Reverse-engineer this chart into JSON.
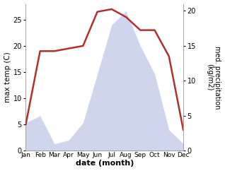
{
  "months": [
    "Jan",
    "Feb",
    "Mar",
    "Apr",
    "May",
    "Jun",
    "Jul",
    "Aug",
    "Sep",
    "Oct",
    "Nov",
    "Dec"
  ],
  "temperature": [
    5,
    19,
    19,
    19.5,
    20,
    26.5,
    27,
    25.5,
    23,
    23,
    18,
    4
  ],
  "precipitation": [
    4,
    5,
    1,
    1.5,
    4,
    11,
    18,
    20,
    15,
    11,
    3,
    1
  ],
  "temp_color": "#b03030",
  "precip_color": "#aab4e0",
  "precip_alpha": 0.55,
  "temp_linewidth": 1.8,
  "ylabel_left": "max temp (C)",
  "ylabel_right": "med. precipitation\n(kg/m2)",
  "xlabel": "date (month)",
  "ylim_left": [
    0,
    28
  ],
  "ylim_right": [
    0,
    21
  ],
  "yticks_left": [
    0,
    5,
    10,
    15,
    20,
    25
  ],
  "yticks_right": [
    0,
    5,
    10,
    15,
    20
  ],
  "background_color": "#ffffff"
}
